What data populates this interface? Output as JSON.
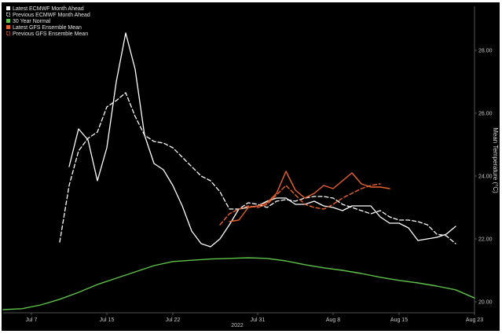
{
  "chart_data": {
    "type": "line",
    "title": "",
    "xlabel": "",
    "ylabel": "Mean Temperature (°C)",
    "ylim": [
      19.65,
      29.4
    ],
    "xlim": [
      "2022-07-04",
      "2022-08-23"
    ],
    "grid": false,
    "legend_position": "top-left",
    "x_ticks": [
      "2022-07-07",
      "2022-07-15",
      "2022-07-22",
      "2022-07-31",
      "2022-08-08",
      "2022-08-15",
      "2022-08-23"
    ],
    "x_tick_labels": [
      "Jul 7",
      "Jul 15",
      "Jul 22",
      "Jul 31",
      "Aug 8",
      "Aug 15",
      "Aug 23"
    ],
    "year_label": "2022",
    "y_ticks": [
      20,
      22,
      24,
      26,
      28
    ],
    "y_tick_labels": [
      "20.00",
      "22.00",
      "24.00",
      "26.00",
      "28.00"
    ],
    "series": [
      {
        "name": "30 Year Normal",
        "color": "#5fc24a",
        "dash": "solid",
        "x": [
          "2022-07-04",
          "2022-07-06",
          "2022-07-08",
          "2022-07-10",
          "2022-07-12",
          "2022-07-14",
          "2022-07-16",
          "2022-07-18",
          "2022-07-20",
          "2022-07-22",
          "2022-07-24",
          "2022-07-26",
          "2022-07-28",
          "2022-07-30",
          "2022-08-01",
          "2022-08-03",
          "2022-08-05",
          "2022-08-07",
          "2022-08-09",
          "2022-08-11",
          "2022-08-13",
          "2022-08-15",
          "2022-08-17",
          "2022-08-19",
          "2022-08-21",
          "2022-08-23"
        ],
        "y": [
          19.75,
          19.78,
          19.9,
          20.08,
          20.3,
          20.55,
          20.75,
          20.95,
          21.15,
          21.28,
          21.32,
          21.36,
          21.38,
          21.4,
          21.38,
          21.3,
          21.18,
          21.08,
          21.0,
          20.9,
          20.78,
          20.68,
          20.6,
          20.5,
          20.38,
          20.12
        ]
      },
      {
        "name": "Previous ECMWF Month Ahead",
        "color": "#ffffff",
        "dash": "dashed",
        "x": [
          "2022-07-10",
          "2022-07-11",
          "2022-07-12",
          "2022-07-13",
          "2022-07-14",
          "2022-07-15",
          "2022-07-16",
          "2022-07-17",
          "2022-07-18",
          "2022-07-19",
          "2022-07-20",
          "2022-07-21",
          "2022-07-22",
          "2022-07-23",
          "2022-07-24",
          "2022-07-25",
          "2022-07-26",
          "2022-07-27",
          "2022-07-28",
          "2022-07-29",
          "2022-07-30",
          "2022-07-31",
          "2022-08-01",
          "2022-08-02",
          "2022-08-03",
          "2022-08-04",
          "2022-08-05",
          "2022-08-06",
          "2022-08-07",
          "2022-08-08",
          "2022-08-09",
          "2022-08-10",
          "2022-08-11",
          "2022-08-12",
          "2022-08-13",
          "2022-08-14",
          "2022-08-15",
          "2022-08-16",
          "2022-08-17",
          "2022-08-18",
          "2022-08-19",
          "2022-08-20",
          "2022-08-21"
        ],
        "y": [
          21.9,
          23.7,
          24.8,
          25.2,
          25.4,
          26.2,
          26.4,
          26.65,
          25.9,
          25.3,
          25.1,
          25.05,
          24.9,
          24.6,
          24.3,
          24.0,
          23.85,
          23.5,
          22.95,
          22.95,
          23.15,
          23.1,
          23.0,
          23.2,
          23.25,
          23.2,
          23.3,
          23.35,
          23.35,
          23.3,
          23.1,
          23.0,
          22.9,
          22.8,
          22.9,
          22.7,
          22.6,
          22.6,
          22.55,
          22.45,
          22.15,
          22.1,
          21.85
        ]
      },
      {
        "name": "Latest ECMWF Month Ahead",
        "color": "#ffffff",
        "dash": "solid",
        "x": [
          "2022-07-11",
          "2022-07-12",
          "2022-07-13",
          "2022-07-14",
          "2022-07-15",
          "2022-07-16",
          "2022-07-17",
          "2022-07-18",
          "2022-07-19",
          "2022-07-20",
          "2022-07-21",
          "2022-07-22",
          "2022-07-23",
          "2022-07-24",
          "2022-07-25",
          "2022-07-26",
          "2022-07-27",
          "2022-07-28",
          "2022-07-29",
          "2022-07-30",
          "2022-07-31",
          "2022-08-01",
          "2022-08-02",
          "2022-08-03",
          "2022-08-04",
          "2022-08-05",
          "2022-08-06",
          "2022-08-07",
          "2022-08-08",
          "2022-08-09",
          "2022-08-10",
          "2022-08-11",
          "2022-08-12",
          "2022-08-13",
          "2022-08-14",
          "2022-08-15",
          "2022-08-16",
          "2022-08-17",
          "2022-08-18",
          "2022-08-19",
          "2022-08-20",
          "2022-08-21"
        ],
        "y": [
          24.3,
          25.5,
          25.15,
          23.85,
          24.9,
          27.0,
          28.55,
          27.4,
          25.3,
          24.4,
          24.2,
          23.7,
          23.05,
          22.25,
          21.85,
          21.75,
          22.0,
          22.45,
          22.95,
          23.0,
          23.05,
          23.2,
          23.3,
          23.3,
          23.1,
          23.1,
          23.2,
          23.05,
          23.0,
          22.9,
          23.05,
          23.05,
          23.05,
          22.7,
          22.5,
          22.5,
          22.35,
          21.95,
          22.0,
          22.05,
          22.15,
          22.4
        ]
      },
      {
        "name": "Previous GFS Ensemble Mean",
        "color": "#e8622f",
        "dash": "dashed",
        "x": [
          "2022-07-27",
          "2022-07-28",
          "2022-07-29",
          "2022-07-30",
          "2022-07-31",
          "2022-08-01",
          "2022-08-02",
          "2022-08-03",
          "2022-08-04",
          "2022-08-05",
          "2022-08-06",
          "2022-08-07",
          "2022-08-08",
          "2022-08-09",
          "2022-08-10",
          "2022-08-11",
          "2022-08-12",
          "2022-08-13"
        ],
        "y": [
          22.45,
          22.8,
          22.95,
          23.05,
          23.0,
          23.1,
          23.4,
          23.7,
          23.4,
          23.1,
          23.0,
          22.95,
          23.1,
          23.3,
          23.45,
          23.6,
          23.7,
          23.75
        ]
      },
      {
        "name": "Latest GFS Ensemble Mean",
        "color": "#e8622f",
        "dash": "solid",
        "x": [
          "2022-07-28",
          "2022-07-29",
          "2022-07-30",
          "2022-07-31",
          "2022-08-01",
          "2022-08-02",
          "2022-08-03",
          "2022-08-04",
          "2022-08-05",
          "2022-08-06",
          "2022-08-07",
          "2022-08-08",
          "2022-08-09",
          "2022-08-10",
          "2022-08-11",
          "2022-08-12",
          "2022-08-13",
          "2022-08-14"
        ],
        "y": [
          22.55,
          22.6,
          23.0,
          23.05,
          23.15,
          23.45,
          24.15,
          23.55,
          23.3,
          23.45,
          23.7,
          23.6,
          23.85,
          24.1,
          23.75,
          23.65,
          23.65,
          23.6
        ]
      }
    ],
    "legend": [
      {
        "label": "Latest ECMWF Month Ahead",
        "swatch": "filled",
        "color": "#ffffff"
      },
      {
        "label": "Previous ECMWF Month Ahead",
        "swatch": "dashed-box",
        "color": "#ffffff"
      },
      {
        "label": "30 Year Normal",
        "swatch": "filled",
        "color": "#5fc24a"
      },
      {
        "label": "Latest GFS Ensemble Mean",
        "swatch": "filled",
        "color": "#e8622f"
      },
      {
        "label": "Previous GFS Ensemble Mean",
        "swatch": "dashed-box",
        "color": "#e8622f"
      }
    ]
  }
}
